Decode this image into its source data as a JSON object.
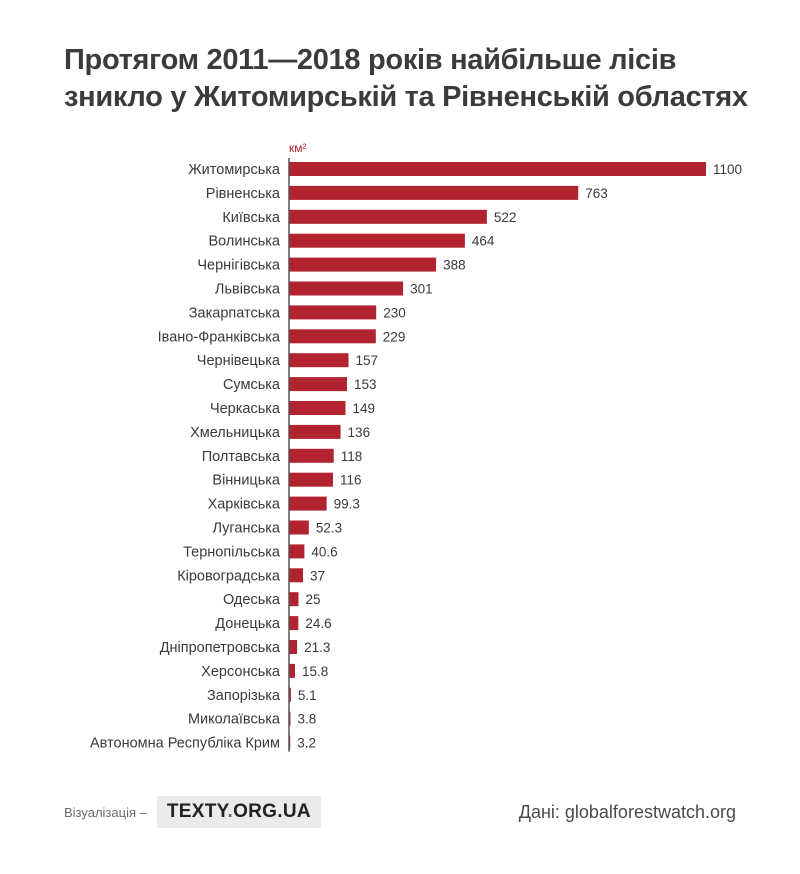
{
  "title": {
    "line1": "Протягом 2011—2018 років найбільше лісів",
    "line2": "зникло у Житомирській та Рівненській областях"
  },
  "chart_data": {
    "type": "bar",
    "orientation": "horizontal",
    "unit_label": "км²",
    "bar_color": "#b0232f",
    "categories": [
      "Житомирська",
      "Рівненська",
      "Київська",
      "Волинська",
      "Чернігівська",
      "Львівська",
      "Закарпатська",
      "Івано-Франківська",
      "Чернівецька",
      "Сумська",
      "Черкаська",
      "Хмельницька",
      "Полтавська",
      "Вінницька",
      "Харківська",
      "Луганська",
      "Тернопільська",
      "Кіровоградська",
      "Одеська",
      "Донецька",
      "Дніпропетровська",
      "Херсонська",
      "Запорізька",
      "Миколаївська",
      "Автономна Республіка Крим"
    ],
    "values": [
      1100,
      763,
      522,
      464,
      388,
      301,
      230,
      229,
      157,
      153,
      149,
      136,
      118,
      116,
      99.3,
      52.3,
      40.6,
      37,
      25,
      24.6,
      21.3,
      15.8,
      5.1,
      3.8,
      3.2
    ],
    "value_labels": [
      "1100",
      "763",
      "522",
      "464",
      "388",
      "301",
      "230",
      "229",
      "157",
      "153",
      "149",
      "136",
      "118",
      "116",
      "99.3",
      "52.3",
      "40.6",
      "37",
      "25",
      "24.6",
      "21.3",
      "15.8",
      "5.1",
      "3.8",
      "3.2"
    ],
    "xlim": [
      0,
      1100
    ],
    "grid": false
  },
  "footer": {
    "viz_label": "Візуалізація –",
    "logo_main": "TEXTY",
    "logo_dot": ".",
    "logo_domain": "ORG.UA",
    "source": "Дані: globalforestwatch.org"
  }
}
